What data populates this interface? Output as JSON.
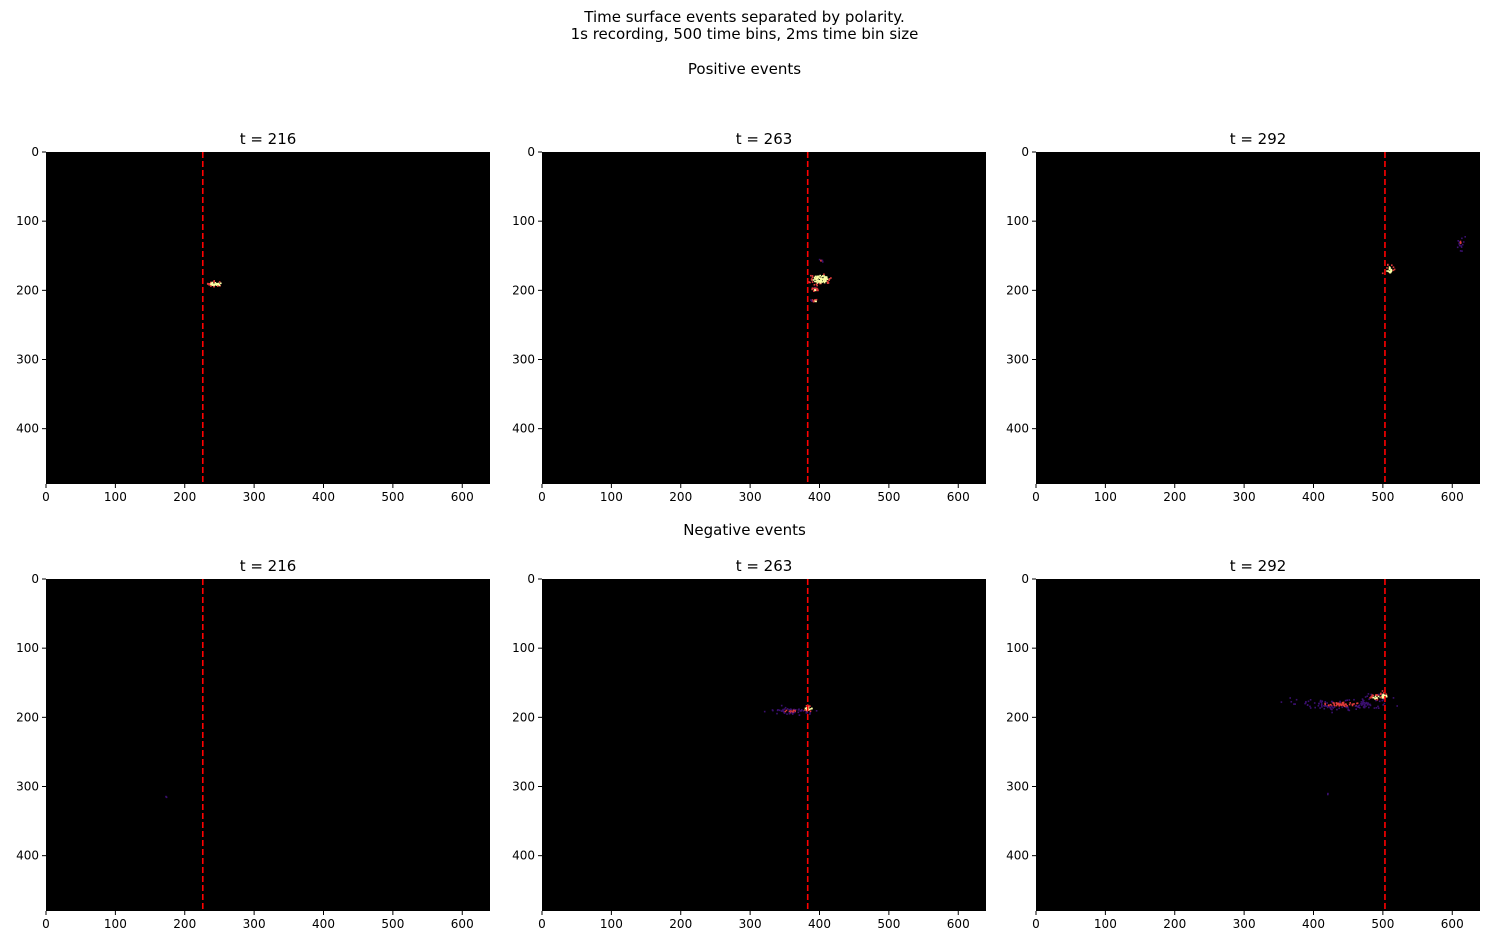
{
  "figure": {
    "suptitle_line1": "Time surface events separated by polarity.",
    "suptitle_line2": "1s recording, 500 time bins, 2ms time bin size",
    "row_titles": [
      "Positive events",
      "Negative events"
    ]
  },
  "colors": {
    "background": "#000000",
    "marker_line": "#ff0000",
    "cmap_low": "#3b0f70",
    "cmap_mid": "#e03b3b",
    "cmap_high": "#fcffa4"
  },
  "chart_data": [
    {
      "type": "heatmap",
      "row": "Positive events",
      "title": "t = 216",
      "xlim": [
        0,
        640
      ],
      "ylim": [
        480,
        0
      ],
      "xticks": [
        "0",
        "100",
        "200",
        "300",
        "400",
        "500",
        "600"
      ],
      "yticks": [
        "0",
        "100",
        "200",
        "300",
        "400"
      ],
      "marker_x": 226,
      "blobs": [
        {
          "x": 243,
          "y": 190,
          "rx": 9,
          "ry": 3,
          "intensity": "high",
          "n": 40
        }
      ]
    },
    {
      "type": "heatmap",
      "row": "Positive events",
      "title": "t = 263",
      "xlim": [
        0,
        640
      ],
      "ylim": [
        480,
        0
      ],
      "xticks": [
        "0",
        "100",
        "200",
        "300",
        "400",
        "500",
        "600"
      ],
      "yticks": [
        "0",
        "100",
        "200",
        "300",
        "400"
      ],
      "marker_x": 383,
      "blobs": [
        {
          "x": 400,
          "y": 183,
          "rx": 12,
          "ry": 6,
          "intensity": "high",
          "n": 90
        },
        {
          "x": 392,
          "y": 198,
          "rx": 6,
          "ry": 3,
          "intensity": "mid",
          "n": 20
        },
        {
          "x": 393,
          "y": 214,
          "rx": 5,
          "ry": 2,
          "intensity": "mid",
          "n": 12
        },
        {
          "x": 401,
          "y": 156,
          "rx": 3,
          "ry": 2,
          "intensity": "low",
          "n": 6
        }
      ]
    },
    {
      "type": "heatmap",
      "row": "Positive events",
      "title": "t = 292",
      "xlim": [
        0,
        640
      ],
      "ylim": [
        480,
        0
      ],
      "xticks": [
        "0",
        "100",
        "200",
        "300",
        "400",
        "500",
        "600"
      ],
      "yticks": [
        "0",
        "100",
        "200",
        "300",
        "400"
      ],
      "marker_x": 503,
      "blobs": [
        {
          "x": 509,
          "y": 170,
          "rx": 5,
          "ry": 6,
          "intensity": "high",
          "n": 25
        },
        {
          "x": 611,
          "y": 131,
          "rx": 4,
          "ry": 8,
          "intensity": "low",
          "n": 18
        }
      ]
    },
    {
      "type": "heatmap",
      "row": "Negative events",
      "title": "t = 216",
      "xlim": [
        0,
        640
      ],
      "ylim": [
        480,
        0
      ],
      "xticks": [
        "0",
        "100",
        "200",
        "300",
        "400",
        "500",
        "600"
      ],
      "yticks": [
        "0",
        "100",
        "200",
        "300",
        "400"
      ],
      "marker_x": 226,
      "blobs": [
        {
          "x": 172,
          "y": 314,
          "rx": 1,
          "ry": 1,
          "intensity": "low",
          "n": 2
        }
      ]
    },
    {
      "type": "heatmap",
      "row": "Negative events",
      "title": "t = 263",
      "xlim": [
        0,
        640
      ],
      "ylim": [
        480,
        0
      ],
      "xticks": [
        "0",
        "100",
        "200",
        "300",
        "400",
        "500",
        "600"
      ],
      "yticks": [
        "0",
        "100",
        "200",
        "300",
        "400"
      ],
      "marker_x": 383,
      "blobs": [
        {
          "x": 358,
          "y": 190,
          "rx": 22,
          "ry": 4,
          "intensity": "low",
          "n": 60
        },
        {
          "x": 383,
          "y": 186,
          "rx": 5,
          "ry": 3,
          "intensity": "high",
          "n": 25
        }
      ]
    },
    {
      "type": "heatmap",
      "row": "Negative events",
      "title": "t = 292",
      "xlim": [
        0,
        640
      ],
      "ylim": [
        480,
        0
      ],
      "xticks": [
        "0",
        "100",
        "200",
        "300",
        "400",
        "500",
        "600"
      ],
      "yticks": [
        "0",
        "100",
        "200",
        "300",
        "400"
      ],
      "marker_x": 503,
      "blobs": [
        {
          "x": 440,
          "y": 180,
          "rx": 55,
          "ry": 6,
          "intensity": "low",
          "n": 160
        },
        {
          "x": 490,
          "y": 170,
          "rx": 12,
          "ry": 4,
          "intensity": "mid",
          "n": 40
        },
        {
          "x": 500,
          "y": 168,
          "rx": 5,
          "ry": 3,
          "intensity": "high",
          "n": 25
        },
        {
          "x": 420,
          "y": 310,
          "rx": 1,
          "ry": 1,
          "intensity": "low",
          "n": 2
        }
      ]
    }
  ]
}
